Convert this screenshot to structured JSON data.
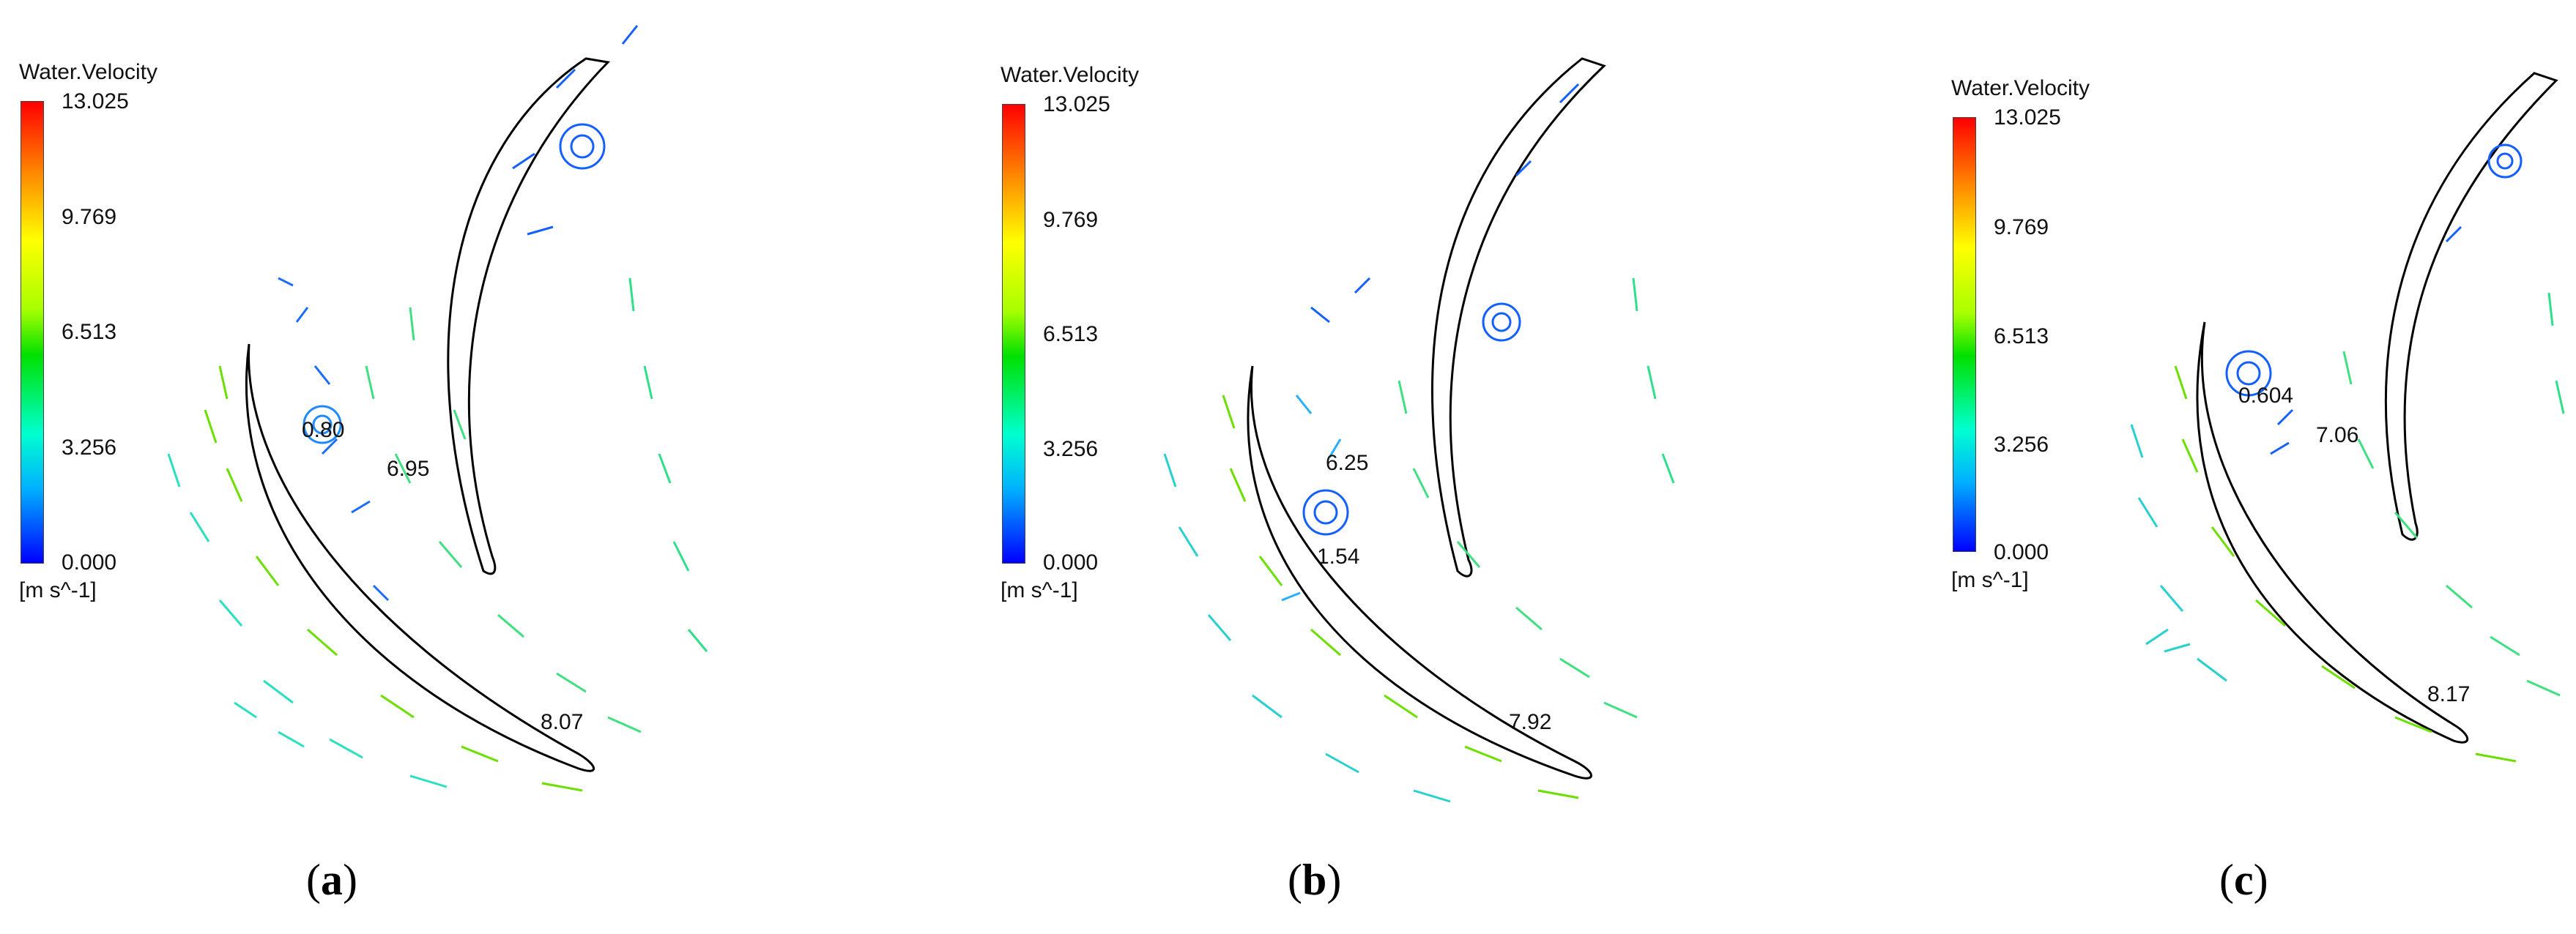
{
  "panels": [
    {
      "colorbar": {
        "title": "Water.Velocity",
        "ticks": [
          "13.025",
          "9.769",
          "6.513",
          "3.256",
          "0.000"
        ],
        "unit": "[m s^-1]"
      },
      "labels": [
        "0.80",
        "6.95",
        "8.07"
      ],
      "caption_open": "(",
      "caption_letter": "a",
      "caption_close": ")"
    },
    {
      "colorbar": {
        "title": "Water.Velocity",
        "ticks": [
          "13.025",
          "9.769",
          "6.513",
          "3.256",
          "0.000"
        ],
        "unit": "[m s^-1]"
      },
      "labels": [
        "6.25",
        "1.54",
        "7.92"
      ],
      "caption_open": "(",
      "caption_letter": "b",
      "caption_close": ")"
    },
    {
      "colorbar": {
        "title": "Water.Velocity",
        "ticks": [
          "13.025",
          "9.769",
          "6.513",
          "3.256",
          "0.000"
        ],
        "unit": "[m s^-1]"
      },
      "labels": [
        "0.604",
        "7.06",
        "8.17"
      ],
      "caption_open": "(",
      "caption_letter": "c",
      "caption_close": ")"
    }
  ],
  "colors": {
    "low": "#0000ff",
    "mid_low": "#00d0ff",
    "mid": "#00e000",
    "mid_high": "#ffff00",
    "high": "#ff0000",
    "blade_outline": "#000000"
  }
}
